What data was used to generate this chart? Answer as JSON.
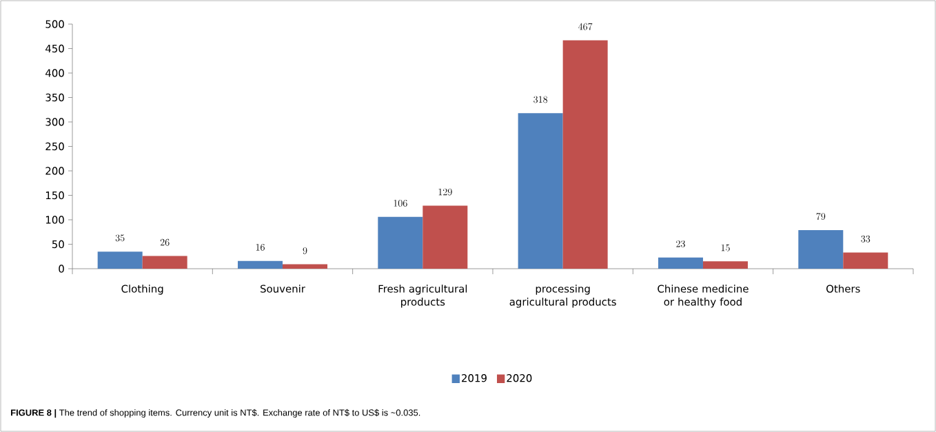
{
  "chart_data": {
    "type": "bar",
    "categories": [
      "Clothing",
      "Souvenir",
      "Fresh agricultural products",
      "processing agricultural products",
      "Chinese medicine or healthy food",
      "Others"
    ],
    "series": [
      {
        "name": "2019",
        "color": "#4f81bd",
        "values": [
          35,
          16,
          106,
          318,
          23,
          79
        ]
      },
      {
        "name": "2020",
        "color": "#c0504d",
        "values": [
          26,
          9,
          129,
          467,
          15,
          33
        ]
      }
    ],
    "ylim": [
      0,
      500
    ],
    "yticks": [
      0,
      50,
      100,
      150,
      200,
      250,
      300,
      350,
      400,
      450,
      500
    ],
    "data_labels": true,
    "legend": "bottom",
    "annotations": [
      "**FIGURE 8 |** The trend of shopping items. Currency unit is NT$. Exchange rate of NT$ to US$ is ~0.035."
    ]
  }
}
